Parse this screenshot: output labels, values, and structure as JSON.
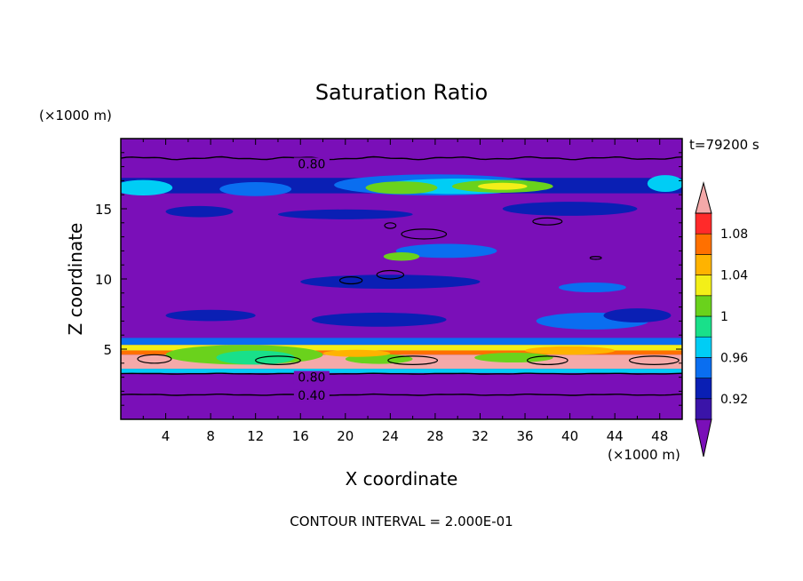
{
  "chart_data": {
    "type": "heatmap",
    "title": "Saturation Ratio",
    "xlabel": "X coordinate",
    "ylabel": "Z coordinate",
    "x_units": "(×1000 m)",
    "y_units": "(×1000 m)",
    "time_label": "t=79200 s",
    "footer": "CONTOUR INTERVAL = 2.000E-01",
    "xlim": [
      0,
      50
    ],
    "ylim": [
      0,
      20
    ],
    "x_ticks": [
      4,
      8,
      12,
      16,
      20,
      24,
      28,
      32,
      36,
      40,
      44,
      48
    ],
    "y_ticks": [
      5,
      10,
      15
    ],
    "contour_labels": [
      {
        "text": "0.80",
        "x": 17,
        "z": 18.2
      },
      {
        "text": "0.80",
        "x": 17,
        "z": 3.0
      },
      {
        "text": "0.40",
        "x": 17,
        "z": 1.7
      }
    ],
    "colorbar": {
      "tick_labels": [
        "0.92",
        "0.96",
        "1",
        "1.04",
        "1.08"
      ],
      "bins": [
        {
          "range": "< 0.90",
          "color": "#7a0fb8"
        },
        {
          "range": "0.90–0.92",
          "color": "#3a14a8"
        },
        {
          "range": "0.92–0.94",
          "color": "#0a1fb4"
        },
        {
          "range": "0.94–0.96",
          "color": "#0a6ef0"
        },
        {
          "range": "0.96–0.98",
          "color": "#00cdf5"
        },
        {
          "range": "0.98–1.00",
          "color": "#19e08a"
        },
        {
          "range": "1.00–1.02",
          "color": "#6ad21c"
        },
        {
          "range": "1.02–1.04",
          "color": "#f3ef18"
        },
        {
          "range": "1.04–1.06",
          "color": "#ffb300"
        },
        {
          "range": "1.06–1.08",
          "color": "#ff7000"
        },
        {
          "range": "1.08–1.10",
          "color": "#ff2a2a"
        },
        {
          "range": "> 1.10",
          "color": "#f4a9a9"
        }
      ]
    }
  }
}
